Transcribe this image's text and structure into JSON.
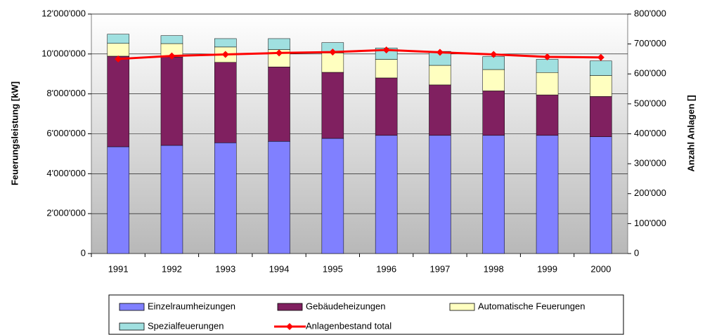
{
  "chart_data": {
    "type": "bar",
    "categories": [
      "1991",
      "1992",
      "1993",
      "1994",
      "1995",
      "1996",
      "1997",
      "1998",
      "1999",
      "2000"
    ],
    "ylabel": "Feuerungsleistung [kW]",
    "y2label": "Anzahl Anlagen []",
    "ylim": [
      0,
      12000000
    ],
    "yticks": [
      0,
      {
        "value": 2000000,
        "label": "2'000'000"
      },
      {
        "value": 4000000,
        "label": "4'000'000"
      },
      {
        "value": 6000000,
        "label": "6'000'000"
      },
      {
        "value": 8000000,
        "label": "8'000'000"
      },
      {
        "value": 10000000,
        "label": "10'000'000"
      },
      {
        "value": 12000000,
        "label": "12'000'000"
      }
    ],
    "y2lim": [
      0,
      800000
    ],
    "y2ticks": [
      0,
      {
        "value": 100000,
        "label": "100'000"
      },
      {
        "value": 200000,
        "label": "200'000"
      },
      {
        "value": 300000,
        "label": "300'000"
      },
      {
        "value": 400000,
        "label": "400'000"
      },
      {
        "value": 500000,
        "label": "500'000"
      },
      {
        "value": 600000,
        "label": "600'000"
      },
      {
        "value": 700000,
        "label": "700'000"
      },
      {
        "value": 800000,
        "label": "800'000"
      }
    ],
    "grid": true,
    "stacked": true,
    "series": [
      {
        "name": "Einzelraumheizungen",
        "color": "#8080ff",
        "values": [
          5350000,
          5420000,
          5550000,
          5620000,
          5770000,
          5920000,
          5920000,
          5920000,
          5920000,
          5850000
        ]
      },
      {
        "name": "Gebäudeheizungen",
        "color": "#802060",
        "values": [
          4540000,
          4430000,
          4030000,
          3730000,
          3310000,
          2880000,
          2530000,
          2230000,
          2030000,
          2020000
        ]
      },
      {
        "name": "Automatische Feuerungen",
        "color": "#ffffc0",
        "values": [
          640000,
          670000,
          770000,
          870000,
          970000,
          930000,
          980000,
          1070000,
          1120000,
          1050000
        ]
      },
      {
        "name": "Spezialfeuerungen",
        "color": "#a0e0e0",
        "values": [
          460000,
          400000,
          420000,
          550000,
          520000,
          570000,
          700000,
          650000,
          660000,
          730000
        ]
      },
      {
        "name": "Anlagenbestand total",
        "color": "#ff0000",
        "type": "line",
        "axis": "y2",
        "values": [
          650000,
          660000,
          665000,
          670000,
          673000,
          680000,
          672000,
          665000,
          657000,
          655000
        ]
      }
    ]
  }
}
